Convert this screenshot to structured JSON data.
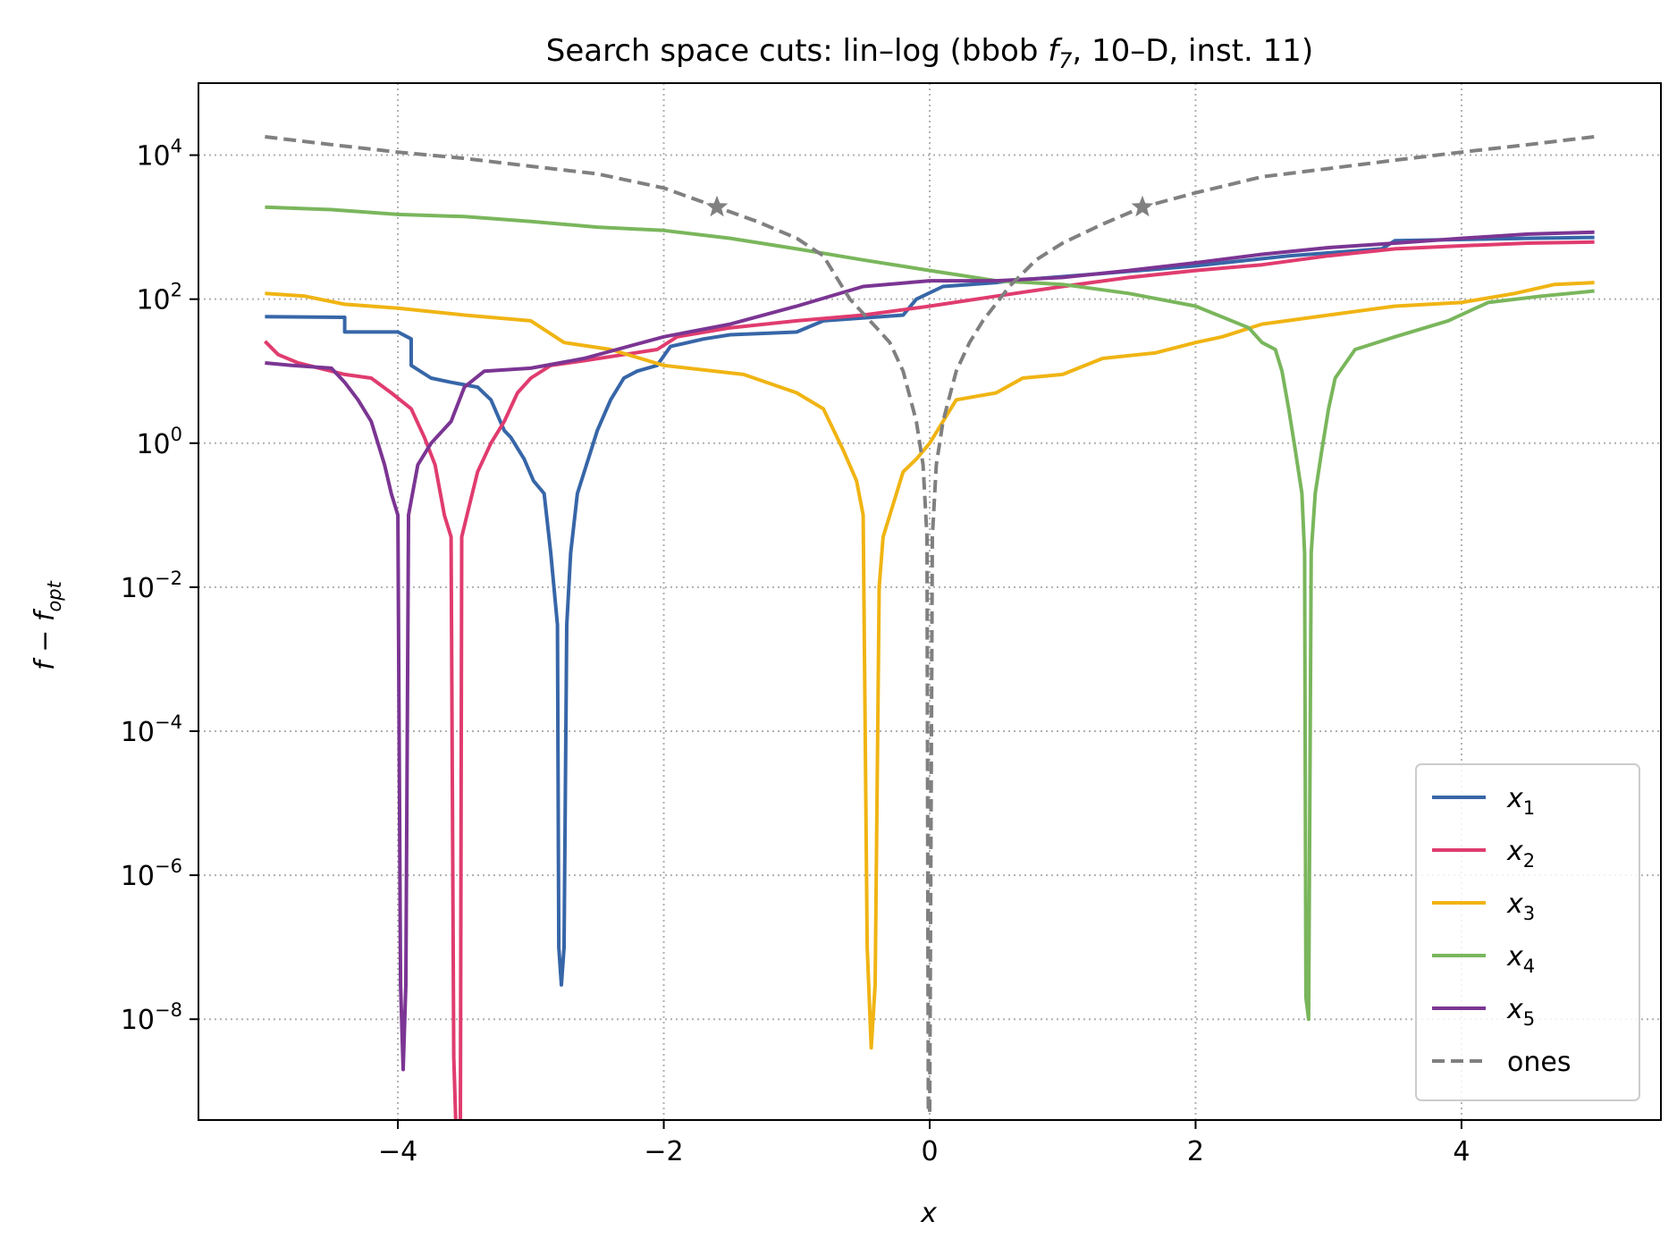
{
  "chart_data": {
    "type": "line",
    "title": "Search space cuts: lin–log (bbob f7, 10–D, inst. 11)",
    "xlabel": "x",
    "ylabel": "f − fopt",
    "xlim": [
      -5.5,
      5.5
    ],
    "ylim_log10": [
      -9.4,
      5.0
    ],
    "yscale": "log",
    "grid": true,
    "legend_position": "lower right",
    "x_ticks": [
      -4,
      -2,
      0,
      2,
      4
    ],
    "x_tick_labels": [
      "−4",
      "−2",
      "0",
      "2",
      "4"
    ],
    "y_ticks_log10": [
      4,
      2,
      0,
      -2,
      -4,
      -6,
      -8
    ],
    "y_tick_labels": [
      "10^4",
      "10^2",
      "10^0",
      "10^−2",
      "10^−4",
      "10^−6",
      "10^−8"
    ],
    "series": [
      {
        "name": "x1",
        "color": "#3766a8",
        "style": "solid",
        "points": [
          [
            -5.0,
            57
          ],
          [
            -4.4,
            56
          ],
          [
            -4.4,
            35
          ],
          [
            -4.0,
            35
          ],
          [
            -3.9,
            28
          ],
          [
            -3.9,
            12
          ],
          [
            -3.75,
            8
          ],
          [
            -3.6,
            7
          ],
          [
            -3.4,
            6
          ],
          [
            -3.3,
            4
          ],
          [
            -3.2,
            1.5
          ],
          [
            -3.15,
            1.2
          ],
          [
            -3.05,
            0.6
          ],
          [
            -2.98,
            0.3
          ],
          [
            -2.9,
            0.2
          ],
          [
            -2.85,
            0.03
          ],
          [
            -2.8,
            0.003
          ],
          [
            -2.79,
            1e-07
          ],
          [
            -2.77,
            3e-08
          ],
          [
            -2.75,
            1e-07
          ],
          [
            -2.73,
            0.003
          ],
          [
            -2.7,
            0.03
          ],
          [
            -2.65,
            0.2
          ],
          [
            -2.5,
            1.5
          ],
          [
            -2.4,
            4
          ],
          [
            -2.3,
            8
          ],
          [
            -2.2,
            10
          ],
          [
            -2.05,
            12
          ],
          [
            -1.95,
            22
          ],
          [
            -1.7,
            28
          ],
          [
            -1.5,
            32
          ],
          [
            -1.0,
            35
          ],
          [
            -0.8,
            50
          ],
          [
            -0.2,
            60
          ],
          [
            -0.1,
            100
          ],
          [
            0.1,
            150
          ],
          [
            0.5,
            170
          ],
          [
            0.6,
            180
          ],
          [
            1.2,
            220
          ],
          [
            1.7,
            260
          ],
          [
            2.0,
            290
          ],
          [
            2.7,
            400
          ],
          [
            3.4,
            500
          ],
          [
            3.5,
            650
          ],
          [
            4.5,
            700
          ],
          [
            5.0,
            720
          ]
        ]
      },
      {
        "name": "x2",
        "color": "#e03c6f",
        "style": "solid",
        "points": [
          [
            -5.0,
            26
          ],
          [
            -4.9,
            17
          ],
          [
            -4.75,
            13
          ],
          [
            -4.5,
            10
          ],
          [
            -4.4,
            9
          ],
          [
            -4.2,
            8
          ],
          [
            -4.05,
            5
          ],
          [
            -3.9,
            3
          ],
          [
            -3.8,
            1.2
          ],
          [
            -3.72,
            0.5
          ],
          [
            -3.65,
            0.1
          ],
          [
            -3.6,
            0.05
          ],
          [
            -3.58,
            3e-09
          ],
          [
            -3.56,
            2e-10
          ],
          [
            -3.54,
            2e-10
          ],
          [
            -3.53,
            3e-10
          ],
          [
            -3.52,
            0.05
          ],
          [
            -3.48,
            0.1
          ],
          [
            -3.4,
            0.4
          ],
          [
            -3.3,
            1.0
          ],
          [
            -3.2,
            2
          ],
          [
            -3.1,
            5
          ],
          [
            -3.0,
            8
          ],
          [
            -2.85,
            12
          ],
          [
            -2.6,
            14
          ],
          [
            -2.3,
            17
          ],
          [
            -2.05,
            20
          ],
          [
            -1.9,
            30
          ],
          [
            -1.5,
            40
          ],
          [
            -1.0,
            50
          ],
          [
            -0.5,
            60
          ],
          [
            0.0,
            80
          ],
          [
            0.5,
            110
          ],
          [
            1.0,
            150
          ],
          [
            1.5,
            200
          ],
          [
            2.0,
            250
          ],
          [
            2.5,
            300
          ],
          [
            3.0,
            400
          ],
          [
            3.5,
            500
          ],
          [
            4.0,
            550
          ],
          [
            4.5,
            600
          ],
          [
            5.0,
            620
          ]
        ]
      },
      {
        "name": "x3",
        "color": "#f0b413",
        "style": "solid",
        "points": [
          [
            -5.0,
            120
          ],
          [
            -4.7,
            110
          ],
          [
            -4.4,
            85
          ],
          [
            -4.0,
            75
          ],
          [
            -3.5,
            60
          ],
          [
            -3.0,
            50
          ],
          [
            -2.75,
            25
          ],
          [
            -2.4,
            20
          ],
          [
            -2.0,
            12
          ],
          [
            -1.4,
            9
          ],
          [
            -1.0,
            5
          ],
          [
            -0.8,
            3
          ],
          [
            -0.65,
            0.8
          ],
          [
            -0.55,
            0.3
          ],
          [
            -0.5,
            0.1
          ],
          [
            -0.47,
            1e-07
          ],
          [
            -0.44,
            4e-09
          ],
          [
            -0.41,
            3e-08
          ],
          [
            -0.38,
            0.01
          ],
          [
            -0.35,
            0.05
          ],
          [
            -0.3,
            0.1
          ],
          [
            -0.2,
            0.4
          ],
          [
            -0.1,
            0.6
          ],
          [
            0.0,
            1.0
          ],
          [
            0.1,
            2
          ],
          [
            0.2,
            4
          ],
          [
            0.5,
            5
          ],
          [
            0.7,
            8
          ],
          [
            1.0,
            9
          ],
          [
            1.3,
            15
          ],
          [
            1.7,
            18
          ],
          [
            2.0,
            25
          ],
          [
            2.2,
            30
          ],
          [
            2.5,
            45
          ],
          [
            3.0,
            60
          ],
          [
            3.5,
            80
          ],
          [
            4.0,
            90
          ],
          [
            4.4,
            120
          ],
          [
            4.7,
            160
          ],
          [
            5.0,
            170
          ]
        ]
      },
      {
        "name": "x4",
        "color": "#7ab65c",
        "style": "solid",
        "points": [
          [
            -5.0,
            1900
          ],
          [
            -4.5,
            1750
          ],
          [
            -4.0,
            1500
          ],
          [
            -3.5,
            1400
          ],
          [
            -3.0,
            1200
          ],
          [
            -2.5,
            1000
          ],
          [
            -2.0,
            900
          ],
          [
            -1.5,
            700
          ],
          [
            -1.0,
            500
          ],
          [
            -0.5,
            350
          ],
          [
            0.0,
            250
          ],
          [
            0.5,
            180
          ],
          [
            1.0,
            160
          ],
          [
            1.5,
            120
          ],
          [
            2.0,
            80
          ],
          [
            2.4,
            40
          ],
          [
            2.5,
            25
          ],
          [
            2.6,
            20
          ],
          [
            2.65,
            10
          ],
          [
            2.7,
            3
          ],
          [
            2.75,
            0.8
          ],
          [
            2.8,
            0.2
          ],
          [
            2.82,
            0.03
          ],
          [
            2.83,
            2e-08
          ],
          [
            2.85,
            1e-08
          ],
          [
            2.87,
            0.03
          ],
          [
            2.9,
            0.2
          ],
          [
            2.95,
            0.8
          ],
          [
            3.0,
            3
          ],
          [
            3.05,
            8
          ],
          [
            3.2,
            20
          ],
          [
            3.5,
            30
          ],
          [
            3.9,
            50
          ],
          [
            4.2,
            90
          ],
          [
            4.6,
            110
          ],
          [
            5.0,
            130
          ]
        ]
      },
      {
        "name": "x5",
        "color": "#7b3593",
        "style": "solid",
        "points": [
          [
            -5.0,
            13
          ],
          [
            -4.8,
            12
          ],
          [
            -4.5,
            11
          ],
          [
            -4.4,
            7
          ],
          [
            -4.3,
            4
          ],
          [
            -4.2,
            2
          ],
          [
            -4.1,
            0.5
          ],
          [
            -4.05,
            0.2
          ],
          [
            -4.0,
            0.1
          ],
          [
            -3.98,
            3e-08
          ],
          [
            -3.96,
            2e-09
          ],
          [
            -3.94,
            3e-08
          ],
          [
            -3.92,
            0.1
          ],
          [
            -3.85,
            0.5
          ],
          [
            -3.75,
            1.0
          ],
          [
            -3.6,
            2
          ],
          [
            -3.5,
            6
          ],
          [
            -3.35,
            10
          ],
          [
            -3.0,
            11
          ],
          [
            -2.6,
            15
          ],
          [
            -2.0,
            30
          ],
          [
            -1.5,
            45
          ],
          [
            -1.0,
            80
          ],
          [
            -0.5,
            150
          ],
          [
            0.0,
            180
          ],
          [
            0.5,
            180
          ],
          [
            1.0,
            200
          ],
          [
            1.5,
            250
          ],
          [
            2.0,
            320
          ],
          [
            2.5,
            420
          ],
          [
            3.0,
            520
          ],
          [
            3.5,
            600
          ],
          [
            4.0,
            700
          ],
          [
            4.5,
            800
          ],
          [
            5.0,
            850
          ]
        ]
      },
      {
        "name": "ones",
        "color": "#808080",
        "style": "dashed",
        "markers": [
          [
            -1.6,
            1900
          ],
          [
            1.6,
            1900
          ]
        ],
        "points": [
          [
            -5.0,
            18000
          ],
          [
            -4.5,
            14000
          ],
          [
            -4.0,
            11000
          ],
          [
            -3.5,
            9000
          ],
          [
            -3.0,
            7000
          ],
          [
            -2.5,
            5500
          ],
          [
            -2.0,
            3500
          ],
          [
            -1.6,
            1900
          ],
          [
            -1.3,
            1200
          ],
          [
            -1.0,
            700
          ],
          [
            -0.8,
            400
          ],
          [
            -0.6,
            100
          ],
          [
            -0.4,
            40
          ],
          [
            -0.3,
            25
          ],
          [
            -0.2,
            10
          ],
          [
            -0.1,
            2
          ],
          [
            -0.05,
            0.5
          ],
          [
            -0.02,
            0.05
          ],
          [
            -0.01,
            5e-10
          ],
          [
            0.0,
            5e-10
          ],
          [
            0.02,
            0.05
          ],
          [
            0.05,
            0.5
          ],
          [
            0.1,
            2
          ],
          [
            0.2,
            10
          ],
          [
            0.3,
            25
          ],
          [
            0.4,
            50
          ],
          [
            0.6,
            150
          ],
          [
            0.8,
            350
          ],
          [
            1.0,
            600
          ],
          [
            1.3,
            1100
          ],
          [
            1.6,
            1900
          ],
          [
            2.0,
            3000
          ],
          [
            2.5,
            5000
          ],
          [
            3.0,
            6500
          ],
          [
            3.5,
            8500
          ],
          [
            4.0,
            11000
          ],
          [
            4.5,
            14000
          ],
          [
            5.0,
            18000
          ]
        ]
      }
    ]
  }
}
